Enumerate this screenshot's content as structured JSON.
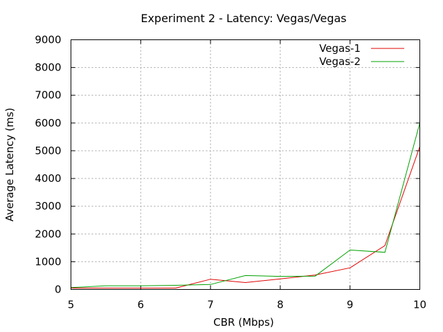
{
  "chart_data": {
    "type": "line",
    "title": "Experiment 2 - Latency: Vegas/Vegas",
    "xlabel": "CBR (Mbps)",
    "ylabel": "Average Latency (ms)",
    "xlim": [
      5,
      10
    ],
    "ylim": [
      0,
      9000
    ],
    "x_ticks": [
      5,
      6,
      7,
      8,
      9,
      10
    ],
    "y_ticks": [
      0,
      1000,
      2000,
      3000,
      4000,
      5000,
      6000,
      7000,
      8000,
      9000
    ],
    "grid": true,
    "legend_position": "top-right",
    "series": [
      {
        "name": "Vegas-1",
        "color": "#e00000",
        "x": [
          5,
          5.5,
          6,
          6.5,
          7,
          7.5,
          8,
          8.5,
          9,
          9.5,
          10
        ],
        "y": [
          50,
          50,
          50,
          50,
          370,
          250,
          380,
          520,
          780,
          1580,
          5150
        ]
      },
      {
        "name": "Vegas-2",
        "color": "#00a000",
        "x": [
          5,
          5.5,
          6,
          6.5,
          7,
          7.5,
          8,
          8.5,
          9,
          9.5,
          10
        ],
        "y": [
          70,
          130,
          130,
          150,
          180,
          500,
          470,
          480,
          1420,
          1340,
          6000
        ]
      }
    ]
  }
}
